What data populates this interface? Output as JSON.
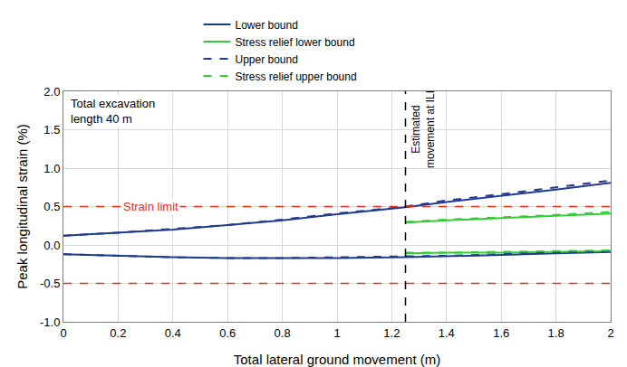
{
  "chart_data": {
    "type": "line",
    "x_label": "Total lateral ground movement (m)",
    "y_label": "Peak longitudinal strain (%)",
    "xlim": [
      0,
      2
    ],
    "xticks": [
      0,
      0.2,
      0.4,
      0.6,
      0.8,
      1,
      1.2,
      1.4,
      1.6,
      1.8,
      2
    ],
    "ylim": [
      -1,
      2
    ],
    "yticks": [
      {
        "value": -1,
        "label": "-1.0"
      },
      {
        "value": -0.5,
        "label": "-0.5"
      },
      {
        "value": 0,
        "label": "0.0"
      },
      {
        "value": 0.5,
        "label": "0.5"
      },
      {
        "value": 1,
        "label": "1.0"
      },
      {
        "value": 1.5,
        "label": "1.5"
      },
      {
        "value": 2,
        "label": "2.0"
      }
    ],
    "grid": true,
    "legend": "top",
    "series": [
      {
        "name": "Lower bound",
        "color": "#1f3a8f",
        "line_style": "solid",
        "x": [
          0,
          0.2,
          0.4,
          0.6,
          0.8,
          1.0,
          1.25,
          1.4,
          1.6,
          1.8,
          2.0,
          null,
          0,
          0.2,
          0.4,
          0.6,
          0.8,
          1.0,
          1.25,
          1.4,
          1.6,
          1.8,
          2.0
        ],
        "values": [
          0.12,
          0.16,
          0.2,
          0.26,
          0.32,
          0.4,
          0.49,
          0.56,
          0.64,
          0.72,
          0.81,
          null,
          -0.12,
          -0.14,
          -0.16,
          -0.17,
          -0.17,
          -0.17,
          -0.16,
          -0.15,
          -0.13,
          -0.11,
          -0.09
        ]
      },
      {
        "name": "Stress relief lower bound",
        "color": "#33cc33",
        "line_style": "solid",
        "x": [
          1.25,
          1.4,
          1.6,
          1.8,
          2.0,
          null,
          1.25,
          1.4,
          1.6,
          1.8,
          2.0
        ],
        "values": [
          0.29,
          0.32,
          0.35,
          0.38,
          0.41,
          null,
          -0.11,
          -0.1,
          -0.1,
          -0.09,
          -0.08
        ]
      },
      {
        "name": "Upper bound",
        "color": "#1f3a8f",
        "line_style": "dash",
        "x": [
          0,
          0.2,
          0.4,
          0.6,
          0.8,
          1.0,
          1.25,
          1.4,
          1.6,
          1.8,
          2.0,
          null,
          0,
          0.2,
          0.4,
          0.6,
          0.8,
          1.0,
          1.25,
          1.4,
          1.6,
          1.8,
          2.0
        ],
        "values": [
          0.12,
          0.16,
          0.21,
          0.26,
          0.33,
          0.41,
          0.5,
          0.58,
          0.66,
          0.75,
          0.84,
          null,
          -0.12,
          -0.14,
          -0.16,
          -0.17,
          -0.17,
          -0.16,
          -0.15,
          -0.14,
          -0.12,
          -0.1,
          -0.08
        ]
      },
      {
        "name": "Stress relief upper bound",
        "color": "#33cc33",
        "line_style": "dash",
        "x": [
          1.25,
          1.4,
          1.6,
          1.8,
          2.0,
          null,
          1.25,
          1.4,
          1.6,
          1.8,
          2.0
        ],
        "values": [
          0.3,
          0.33,
          0.36,
          0.39,
          0.43,
          null,
          -0.1,
          -0.1,
          -0.09,
          -0.08,
          -0.07
        ]
      }
    ],
    "reference_lines": [
      {
        "axis": "y",
        "value": 0.5,
        "color": "#e0301e",
        "line_style": "dash",
        "label": "Strain limit",
        "label_x": 0.32
      },
      {
        "axis": "y",
        "value": -0.5,
        "color": "#e0301e",
        "line_style": "dash"
      },
      {
        "axis": "x",
        "value": 1.25,
        "color": "#000000",
        "line_style": "dash",
        "label": [
          "Estimated",
          "movement at ILI"
        ],
        "label_y": 1.5
      }
    ],
    "annotations": [
      {
        "text": [
          "Total excavation",
          "length 40 m"
        ],
        "x": 0.02,
        "y": 1.95
      }
    ]
  }
}
